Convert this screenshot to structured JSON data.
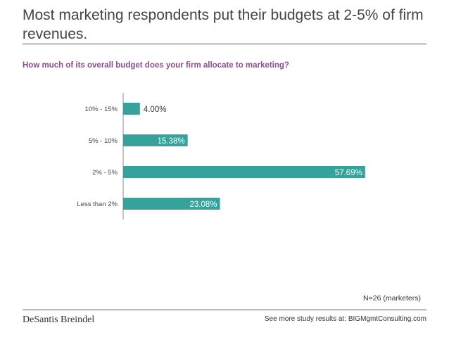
{
  "header": {
    "title": "Most marketing respondents put their budgets at 2-5% of firm revenues."
  },
  "chart_data": {
    "type": "bar",
    "orientation": "horizontal",
    "title": "How much of its overall budget does your firm allocate to marketing?",
    "categories": [
      "10% - 15%",
      "5% - 10%",
      "2% - 5%",
      "Less than 2%"
    ],
    "values": [
      4.0,
      15.38,
      57.69,
      23.08
    ],
    "value_labels": [
      "4.00%",
      "15.38%",
      "57.69%",
      "23.08%"
    ],
    "unit": "%",
    "xlim": [
      0,
      60
    ],
    "grid": false,
    "legend": "none",
    "bar_color": "#35a39b",
    "label_color_inside": "#ffffff",
    "label_color_outside": "#333333"
  },
  "note": "N=26 (marketers)",
  "footer": {
    "logo": "DeSantis Breindel",
    "prefix": "See more study results at:",
    "link": "BIGMgmtConsulting.com"
  },
  "colors": {
    "subtitle": "#8a4f8c",
    "bar": "#35a39b",
    "rule": "#555555"
  }
}
